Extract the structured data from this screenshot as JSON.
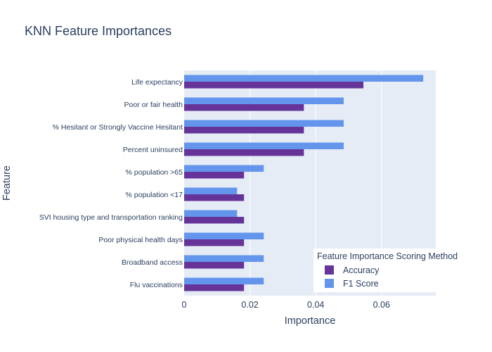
{
  "chart_data": {
    "type": "bar",
    "orientation": "horizontal",
    "title": "KNN Feature Importances",
    "xlabel": "Importance",
    "ylabel": "Feature",
    "xlim": [
      0,
      0.0765
    ],
    "xticks": [
      0,
      0.02,
      0.04,
      0.06
    ],
    "xtick_labels": [
      "0",
      "0.02",
      "0.04",
      "0.06"
    ],
    "grid": true,
    "categories": [
      "Life expectancy",
      "Poor or fair health",
      "% Hesitant or Strongly Vaccine Hesitant",
      "Percent uninsured",
      "% population >65",
      "% population <17",
      "SVI housing type and transportation ranking",
      "Poor physical health days",
      "Broadband access",
      "Flu vaccinations"
    ],
    "series": [
      {
        "name": "Accuracy",
        "color": "#663399",
        "values": [
          0.0545,
          0.0364,
          0.0364,
          0.0364,
          0.0182,
          0.0182,
          0.0182,
          0.0182,
          0.0182,
          0.0182
        ]
      },
      {
        "name": "F1 Score",
        "color": "#6495ED",
        "values": [
          0.0727,
          0.0485,
          0.0485,
          0.0485,
          0.0242,
          0.0161,
          0.0161,
          0.0242,
          0.0242,
          0.0242
        ]
      }
    ],
    "legend": {
      "title": "Feature Importance Scoring Method",
      "placement": "bottom-right"
    }
  }
}
